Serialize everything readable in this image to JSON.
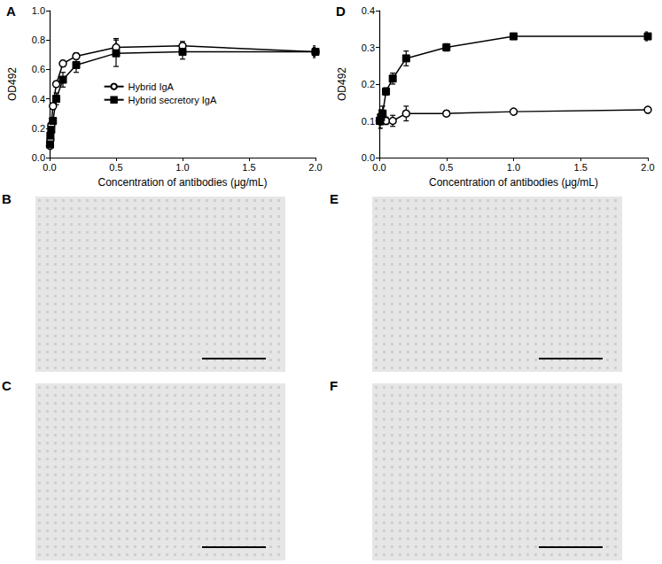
{
  "chart_data": [
    {
      "type": "line",
      "title": "A",
      "xlabel": "Concentration of antibodies (μg/mL)",
      "ylabel": "OD492",
      "x": [
        0.003,
        0.006,
        0.0125,
        0.025,
        0.05,
        0.1,
        0.2,
        0.5,
        1.0,
        2.0
      ],
      "xlim": [
        0,
        2
      ],
      "xticks": [
        {
          "value": 0,
          "label": "0.0"
        },
        0.5,
        {
          "value": 1,
          "label": "1.0"
        },
        1.5,
        {
          "value": 2,
          "label": "2.0"
        }
      ],
      "ylim": [
        0,
        1
      ],
      "yticks": [
        {
          "value": 0,
          "label": "0.0"
        },
        0.2,
        0.4,
        0.6,
        0.8,
        {
          "value": 1,
          "label": "1.0"
        }
      ],
      "grid": false,
      "legend": "center",
      "series": [
        {
          "name": "Hybrid IgA",
          "color": "#000000",
          "marker": "circle-open",
          "values": [
            0.08,
            0.12,
            0.22,
            0.35,
            0.5,
            0.64,
            0.69,
            0.75,
            0.76,
            0.72
          ],
          "errors": [
            0.01,
            0.01,
            0.01,
            0.02,
            0.02,
            0.02,
            0.02,
            0.06,
            0.03,
            0.03
          ]
        },
        {
          "name": "Hybrid secretory IgA",
          "color": "#000000",
          "marker": "square",
          "values": [
            0.09,
            0.15,
            0.19,
            0.25,
            0.4,
            0.53,
            0.63,
            0.71,
            0.72,
            0.72
          ],
          "errors": [
            0.01,
            0.01,
            0.02,
            0.02,
            0.04,
            0.05,
            0.05,
            0.09,
            0.05,
            0.04
          ]
        }
      ]
    },
    {
      "type": "line",
      "title": "D",
      "xlabel": "Concentration of antibodies (μg/mL)",
      "ylabel": "OD492",
      "x": [
        0.003,
        0.006,
        0.0125,
        0.025,
        0.05,
        0.1,
        0.2,
        0.5,
        1.0,
        2.0
      ],
      "xlim": [
        0,
        2
      ],
      "xticks": [
        {
          "value": 0,
          "label": "0.0"
        },
        0.5,
        {
          "value": 1,
          "label": "1.0"
        },
        1.5,
        {
          "value": 2,
          "label": "2.0"
        }
      ],
      "ylim": [
        0,
        0.4
      ],
      "yticks": [
        {
          "value": 0,
          "label": "0.0"
        },
        0.1,
        0.2,
        0.3,
        0.4
      ],
      "grid": false,
      "series": [
        {
          "color": "#000000",
          "marker": "circle-open",
          "values": [
            0.1,
            0.1,
            0.1,
            0.11,
            0.1,
            0.1,
            0.12,
            0.12,
            0.125,
            0.13
          ],
          "errors": [
            0.01,
            0.01,
            0.01,
            0.01,
            0.01,
            0.015,
            0.02,
            0.005,
            0.005,
            0.005
          ]
        },
        {
          "color": "#000000",
          "marker": "square",
          "values": [
            0.1,
            0.1,
            0.11,
            0.12,
            0.18,
            0.215,
            0.27,
            0.3,
            0.33,
            0.33
          ],
          "errors": [
            0.02,
            0.02,
            0.02,
            0.02,
            0.01,
            0.015,
            0.02,
            0.01,
            0.005,
            0.012
          ]
        }
      ]
    }
  ],
  "image_panels": [
    {
      "label": "B"
    },
    {
      "label": "C"
    },
    {
      "label": "E"
    },
    {
      "label": "F"
    }
  ]
}
